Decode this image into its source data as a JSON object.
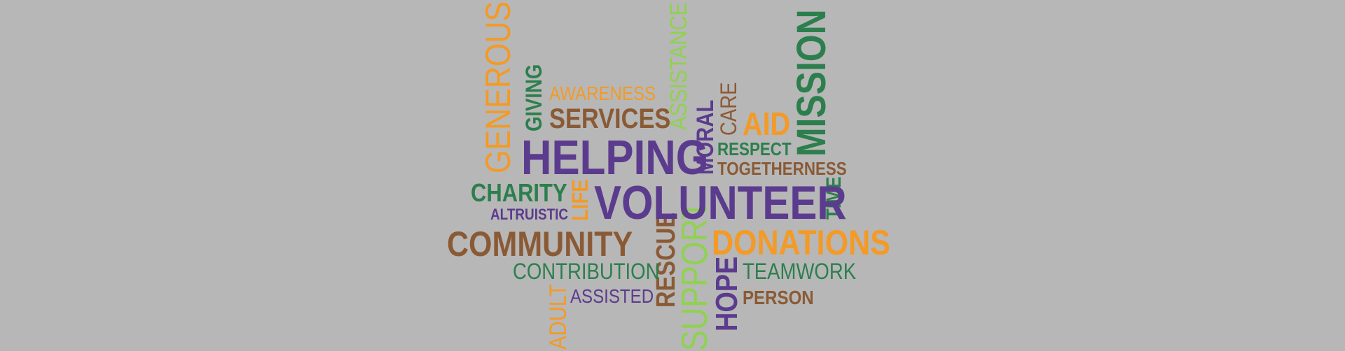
{
  "word_cloud": {
    "colors": {
      "orange": "#f39a27",
      "brown": "#8a5a35",
      "green": "#2c7f4d",
      "purple": "#5b3b8e",
      "lime": "#8fd24f",
      "background": "#b7b7b7"
    },
    "words": {
      "generous": "GENEROUS",
      "giving": "GIVING",
      "awareness": "AWARENESS",
      "services": "SERVICES",
      "assistance": "ASSISTANCE",
      "moral": "MORAL",
      "care": "CARE",
      "aid": "AID",
      "mission": "MISSION",
      "helping": "HELPING",
      "respect": "RESPECT",
      "togetherness": "TOGETHERNESS",
      "charity": "CHARITY",
      "life": "LIFE",
      "volunteer": "VOLUNTEER",
      "time": "TIME",
      "altruistic": "ALTRUISTIC",
      "community": "COMMUNITY",
      "rescue": "RESCUE",
      "support": "SUPPORT",
      "donations": "DONATIONS",
      "contribution": "CONTRIBUTION",
      "hope": "HOPE",
      "teamwork": "TEAMWORK",
      "adult": "ADULT",
      "assisted": "ASSISTED",
      "person": "PERSON"
    }
  }
}
